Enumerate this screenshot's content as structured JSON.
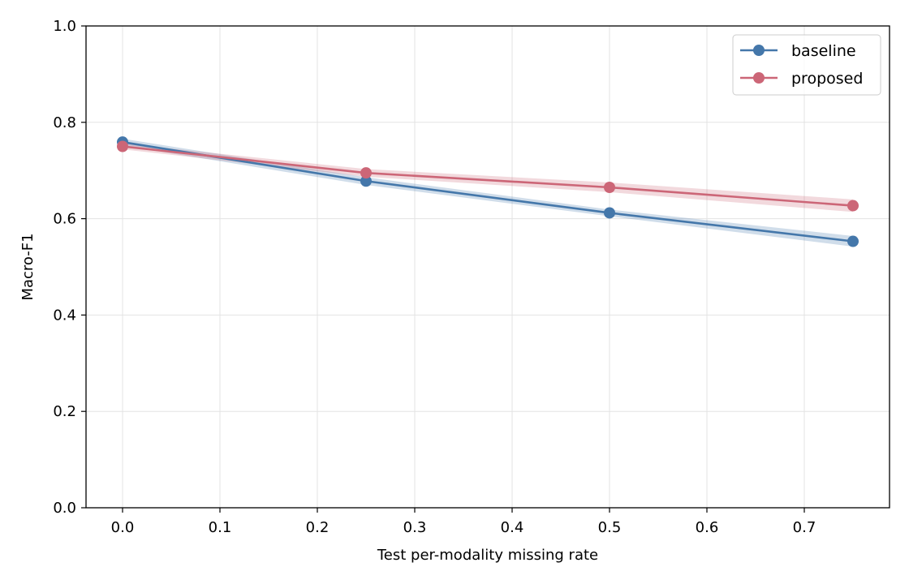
{
  "chart_data": {
    "type": "line",
    "title": "",
    "xlabel": "Test per-modality missing rate",
    "ylabel": "Macro-F1",
    "xlim": [
      -0.0375,
      0.7875
    ],
    "ylim": [
      0.0,
      1.0
    ],
    "xticks": [
      "0.0",
      "0.1",
      "0.2",
      "0.3",
      "0.4",
      "0.5",
      "0.6",
      "0.7"
    ],
    "yticks": [
      "0.0",
      "0.2",
      "0.4",
      "0.6",
      "0.8",
      "1.0"
    ],
    "grid": true,
    "legend_position": "top-right",
    "x": [
      0.0,
      0.25,
      0.5,
      0.75
    ],
    "series": [
      {
        "name": "baseline",
        "color": "#4477aa",
        "values": [
          0.759,
          0.678,
          0.612,
          0.553
        ],
        "band_lower": [
          0.752,
          0.67,
          0.605,
          0.542
        ],
        "band_upper": [
          0.766,
          0.686,
          0.619,
          0.564
        ]
      },
      {
        "name": "proposed",
        "color": "#cc6677",
        "values": [
          0.75,
          0.695,
          0.665,
          0.627
        ],
        "band_lower": [
          0.744,
          0.687,
          0.655,
          0.614
        ],
        "band_upper": [
          0.756,
          0.703,
          0.675,
          0.64
        ]
      }
    ]
  }
}
